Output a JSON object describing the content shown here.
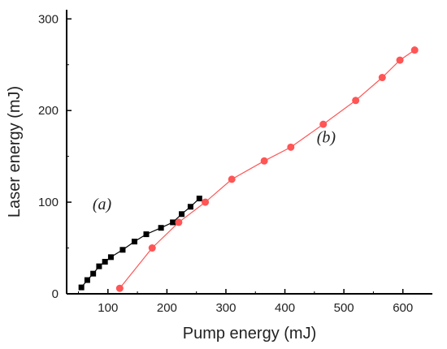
{
  "chart_data": {
    "type": "line",
    "xlabel": "Pump energy (mJ)",
    "ylabel": "Laser energy (mJ)",
    "xlim": [
      30,
      650
    ],
    "ylim": [
      0,
      310
    ],
    "x_ticks": [
      100,
      200,
      300,
      400,
      500,
      600
    ],
    "y_ticks": [
      0,
      100,
      200,
      300
    ],
    "x_tick_labels": [
      "100",
      "200",
      "300",
      "400",
      "500",
      "600"
    ],
    "y_tick_labels": [
      "0",
      "100",
      "200",
      "300"
    ],
    "grid": false,
    "legend": "none",
    "annotations": [
      {
        "text": "(a)",
        "x": 90,
        "y": 92
      },
      {
        "text": "(b)",
        "x": 470,
        "y": 165
      }
    ],
    "series": [
      {
        "marker": "square",
        "color": "#000000",
        "x": [
          55,
          65,
          75,
          85,
          95,
          105,
          125,
          145,
          165,
          190,
          210,
          225,
          240,
          255
        ],
        "y": [
          7,
          15,
          22,
          30,
          35,
          40,
          48,
          57,
          65,
          72,
          78,
          87,
          95,
          104
        ]
      },
      {
        "marker": "circle",
        "color": "#ff5555",
        "x": [
          120,
          175,
          220,
          265,
          310,
          365,
          410,
          465,
          520,
          565,
          595,
          620
        ],
        "y": [
          6,
          50,
          78,
          100,
          125,
          145,
          160,
          185,
          211,
          236,
          255,
          266
        ]
      }
    ]
  }
}
